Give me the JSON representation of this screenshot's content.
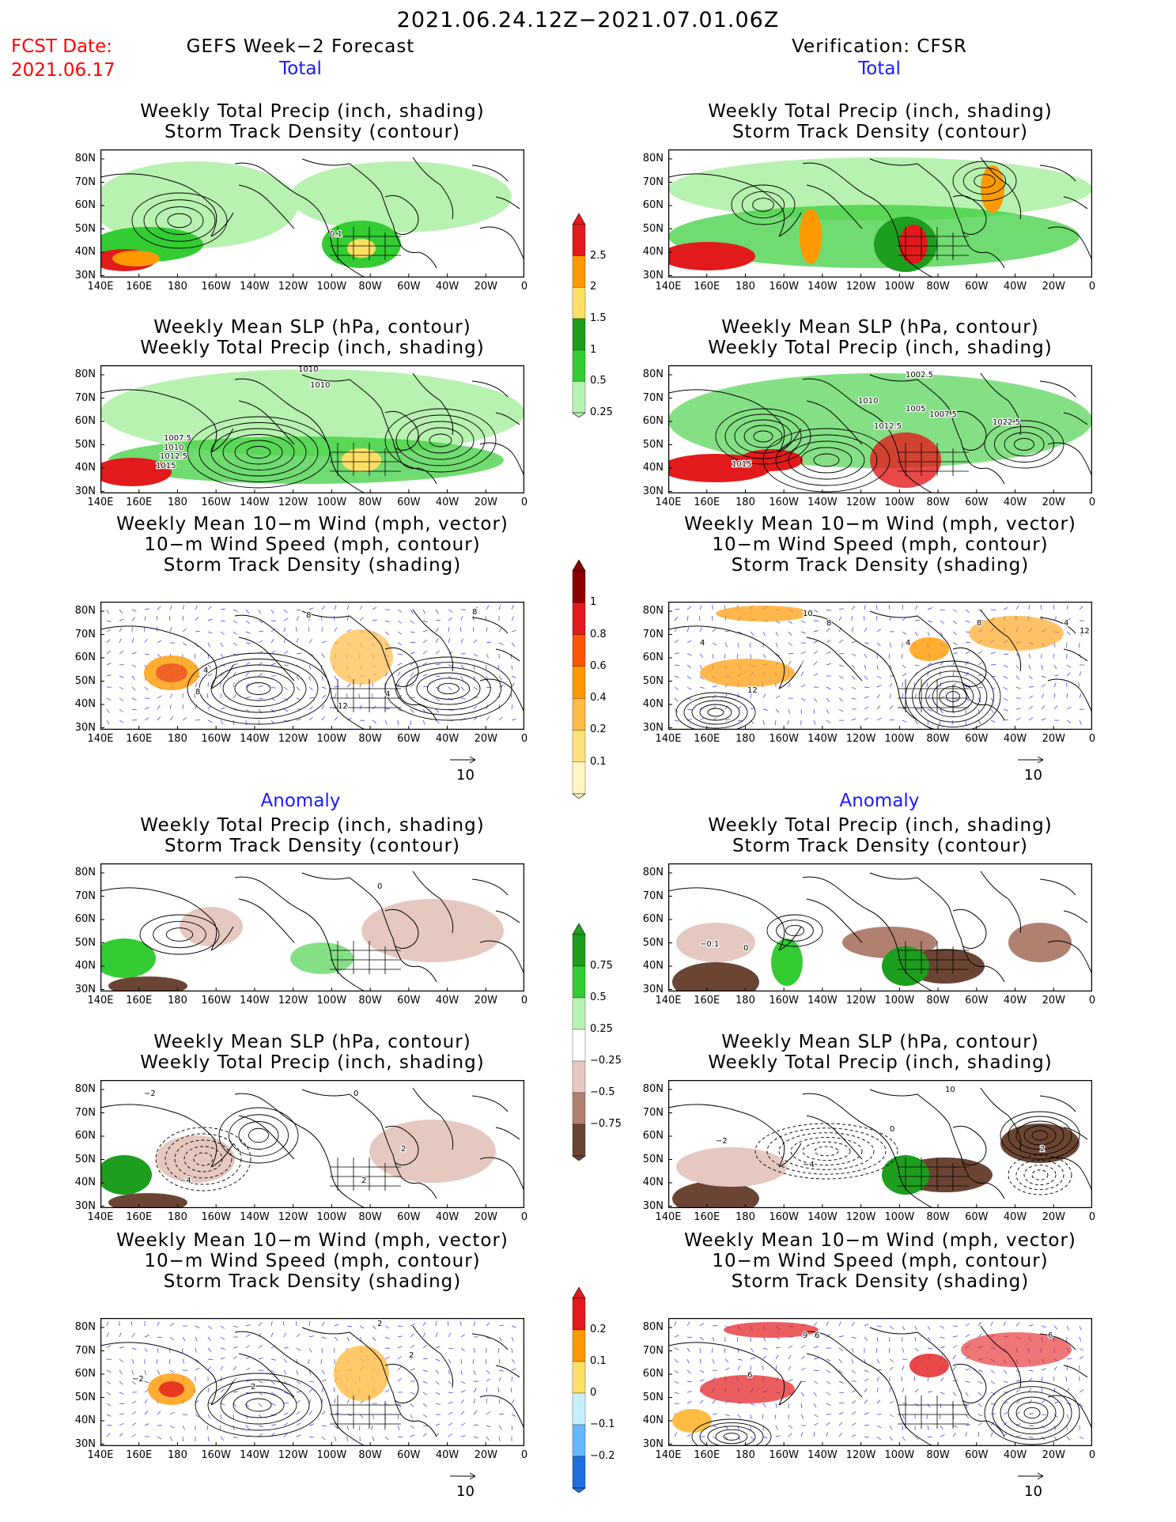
{
  "title": "2021.06.24.12Z−2021.07.01.06Z",
  "fcst_date_label": "FCST Date:",
  "fcst_date_value": "2021.06.17",
  "left_header": "GEFS Week−2 Forecast",
  "right_header": "Verification: CFSR",
  "sections": {
    "total": "Total",
    "anomaly": "Anomaly"
  },
  "panel_titles": {
    "precip_storm": [
      "Weekly Total Precip (inch, shading)",
      "Storm Track Density (contour)"
    ],
    "slp_precip": [
      "Weekly Mean SLP (hPa, contour)",
      "Weekly Total Precip (inch, shading)"
    ],
    "wind_storm": [
      "Weekly Mean 10−m Wind (mph, vector)",
      "10−m Wind Speed (mph, contour)",
      "Storm Track Density (shading)"
    ]
  },
  "axes": {
    "lat_labels": [
      "80N",
      "70N",
      "60N",
      "50N",
      "40N",
      "30N"
    ],
    "lon_labels": [
      "140E",
      "160E",
      "180",
      "160W",
      "140W",
      "120W",
      "100W",
      "80W",
      "60W",
      "40W",
      "20W",
      "0"
    ]
  },
  "vector_ref": "10",
  "colorbars": {
    "precip_total": {
      "labels": [
        "2.5",
        "2",
        "1.5",
        "1",
        "0.5",
        "0.25"
      ],
      "colors": [
        "#e31a1c",
        "#ff9900",
        "#ffe066",
        "#1e9e1e",
        "#33cc33",
        "#b8f2b0"
      ]
    },
    "storm_total": {
      "labels": [
        "1",
        "0.8",
        "0.6",
        "0.4",
        "0.2",
        "0.1"
      ],
      "colors": [
        "#8b0000",
        "#e31a1c",
        "#ff5500",
        "#ff9900",
        "#ffbb44",
        "#ffe27a",
        "#fff6c2"
      ]
    },
    "precip_anom": {
      "labels": [
        "0.75",
        "0.5",
        "0.25",
        "−0.25",
        "−0.5",
        "−0.75"
      ],
      "colors": [
        "#1e9e1e",
        "#33cc33",
        "#b8f2b0",
        "#ffffff",
        "#e5c9c0",
        "#b08070",
        "#6b4533"
      ]
    },
    "storm_anom": {
      "labels": [
        "0.2",
        "0.1",
        "0",
        "−0.1",
        "−0.2"
      ],
      "colors": [
        "#e31a1c",
        "#ff9900",
        "#ffe066",
        "#c6f0ff",
        "#66b8ff",
        "#1f6fe0"
      ]
    }
  },
  "contour_labels": {
    "fc_storm_total": [
      "0.1"
    ],
    "fc_slp_total": [
      "1010",
      "1010",
      "1007.5",
      "1010",
      "1012.5",
      "1015"
    ],
    "ob_slp_total": [
      "1002.5",
      "1010",
      "1005",
      "1007.5",
      "1012.5",
      "1022.5",
      "1015"
    ],
    "fc_wind_total": [
      "8",
      "4",
      "8",
      "4",
      "12",
      "8"
    ],
    "ob_wind_total": [
      "4",
      "8",
      "10",
      "8",
      "4",
      "12",
      "4",
      "12"
    ],
    "fc_storm_anom": [
      "0"
    ],
    "ob_storm_anom": [
      "−0.1",
      "0"
    ],
    "fc_slp_anom": [
      "−2",
      "0",
      "−4",
      "2",
      "2"
    ],
    "ob_slp_anom": [
      "10",
      "−2",
      "0",
      "−4",
      "2"
    ],
    "fc_wind_anom": [
      "2",
      "−2",
      "2",
      "2"
    ],
    "ob_wind_anom": [
      "9",
      "6",
      "6",
      "6"
    ]
  }
}
